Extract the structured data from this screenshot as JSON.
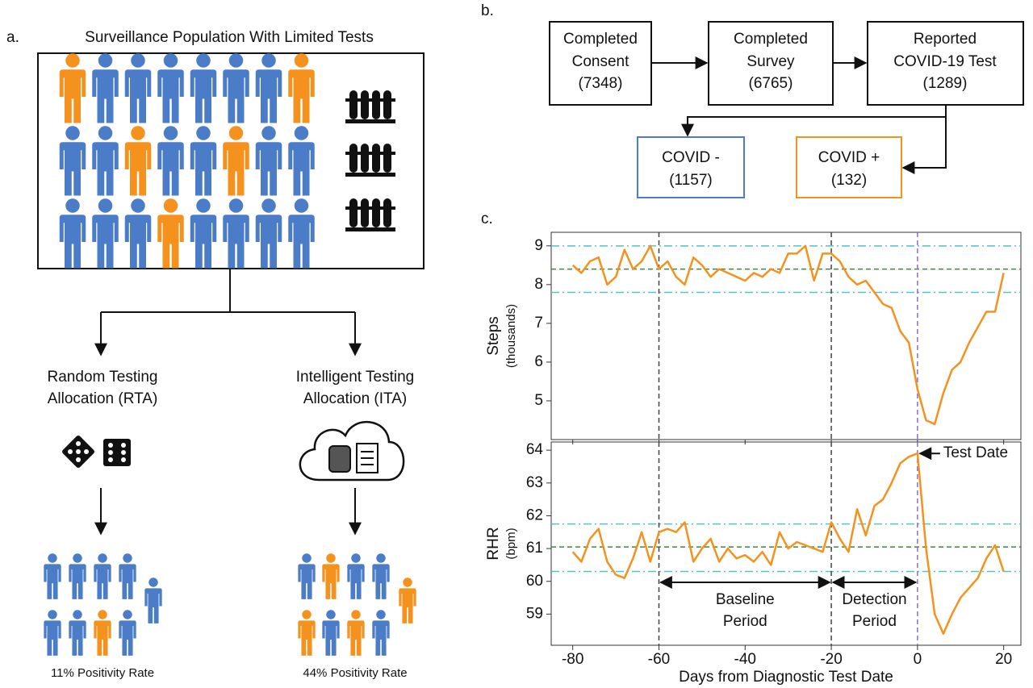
{
  "panel_a": {
    "label": "a.",
    "title": "Surveillance Population With Limited Tests",
    "rta": [
      "Random Testing",
      "Allocation (RTA)"
    ],
    "ita": [
      "Intelligent Testing",
      "Allocation (ITA)"
    ],
    "rta_rate": "11% Positivity Rate",
    "ita_rate": "44% Positivity Rate"
  },
  "panel_b": {
    "label": "b.",
    "boxes": [
      [
        "Completed",
        "Consent",
        "(7348)"
      ],
      [
        "Completed",
        "Survey",
        "(6765)"
      ],
      [
        "Reported",
        "COVID-19 Test",
        "(1289)"
      ]
    ],
    "negative": [
      "COVID -",
      "(1157)"
    ],
    "positive": [
      "COVID +",
      "(132)"
    ]
  },
  "panel_c": {
    "label": "c."
  },
  "chart_data": [
    {
      "type": "line",
      "ylabel": [
        "Steps",
        "(thousands)"
      ],
      "color": "#f5921e",
      "x": [
        -80,
        -78,
        -76,
        -74,
        -72,
        -70,
        -68,
        -66,
        -64,
        -62,
        -60,
        -58,
        -56,
        -54,
        -52,
        -50,
        -48,
        -46,
        -44,
        -42,
        -40,
        -38,
        -36,
        -34,
        -32,
        -30,
        -28,
        -26,
        -24,
        -22,
        -20,
        -18,
        -16,
        -14,
        -12,
        -10,
        -8,
        -6,
        -4,
        -2,
        0,
        2,
        4,
        6,
        8,
        10,
        12,
        14,
        16,
        18,
        20
      ],
      "values": [
        8.5,
        8.3,
        8.6,
        8.7,
        8.0,
        8.2,
        8.9,
        8.4,
        8.6,
        9.0,
        8.4,
        8.6,
        8.2,
        8.0,
        8.7,
        8.5,
        8.2,
        8.4,
        8.3,
        8.2,
        8.1,
        8.3,
        8.2,
        8.4,
        8.3,
        8.8,
        8.8,
        9.0,
        8.1,
        8.8,
        8.8,
        8.6,
        8.2,
        8.0,
        8.1,
        7.8,
        7.5,
        7.4,
        6.8,
        6.5,
        5.3,
        4.5,
        4.4,
        5.2,
        5.8,
        6.0,
        6.5,
        6.9,
        7.3,
        7.3,
        8.3
      ],
      "xlim": [
        -85,
        24
      ],
      "ylim": [
        4.0,
        9.35
      ],
      "yticks": [
        5,
        6,
        7,
        8,
        9
      ],
      "mean": 8.4,
      "band": [
        7.8,
        9.0
      ],
      "vlines": [
        {
          "x": -60,
          "color": "#444"
        },
        {
          "x": -20,
          "color": "#444"
        },
        {
          "x": 0,
          "color": "#8a6fd6"
        }
      ]
    },
    {
      "type": "line",
      "ylabel": [
        "RHR",
        "(bpm)"
      ],
      "xlabel": "Days from Diagnostic Test Date",
      "color": "#f5921e",
      "x": [
        -80,
        -78,
        -76,
        -74,
        -72,
        -70,
        -68,
        -66,
        -64,
        -62,
        -60,
        -58,
        -56,
        -54,
        -52,
        -50,
        -48,
        -46,
        -44,
        -42,
        -40,
        -38,
        -36,
        -34,
        -32,
        -30,
        -28,
        -26,
        -24,
        -22,
        -20,
        -18,
        -16,
        -14,
        -12,
        -10,
        -8,
        -6,
        -4,
        -2,
        0,
        2,
        4,
        6,
        8,
        10,
        12,
        14,
        16,
        18,
        20
      ],
      "values": [
        60.9,
        60.6,
        61.3,
        61.6,
        60.6,
        60.2,
        60.1,
        60.7,
        61.5,
        60.6,
        61.5,
        61.6,
        61.5,
        61.8,
        60.6,
        61.0,
        61.3,
        60.6,
        61.0,
        60.7,
        60.8,
        60.6,
        60.9,
        60.5,
        61.5,
        61.0,
        61.2,
        61.1,
        61.0,
        60.9,
        61.8,
        61.3,
        60.9,
        62.2,
        61.4,
        62.3,
        62.5,
        63.0,
        63.6,
        63.8,
        63.9,
        61.0,
        59.0,
        58.4,
        59.0,
        59.5,
        59.8,
        60.1,
        60.7,
        61.1,
        60.3
      ],
      "xlim": [
        -85,
        24
      ],
      "ylim": [
        58.05,
        64.25
      ],
      "xticks": [
        -80,
        -60,
        -40,
        -20,
        0,
        20
      ],
      "yticks": [
        59,
        60,
        61,
        62,
        63,
        64
      ],
      "mean": 61.05,
      "band": [
        60.3,
        61.75
      ],
      "vlines": [
        {
          "x": -60,
          "color": "#444"
        },
        {
          "x": -20,
          "color": "#444"
        },
        {
          "x": 0,
          "color": "#8a6fd6"
        }
      ],
      "annotation": {
        "text": "Test Date",
        "x": 0,
        "y": 63.9
      },
      "periods": [
        {
          "lines": [
            "Baseline",
            "Period"
          ],
          "start": -60,
          "end": -20
        },
        {
          "lines": [
            "Detection",
            "Period"
          ],
          "start": -20,
          "end": 0
        }
      ]
    }
  ]
}
